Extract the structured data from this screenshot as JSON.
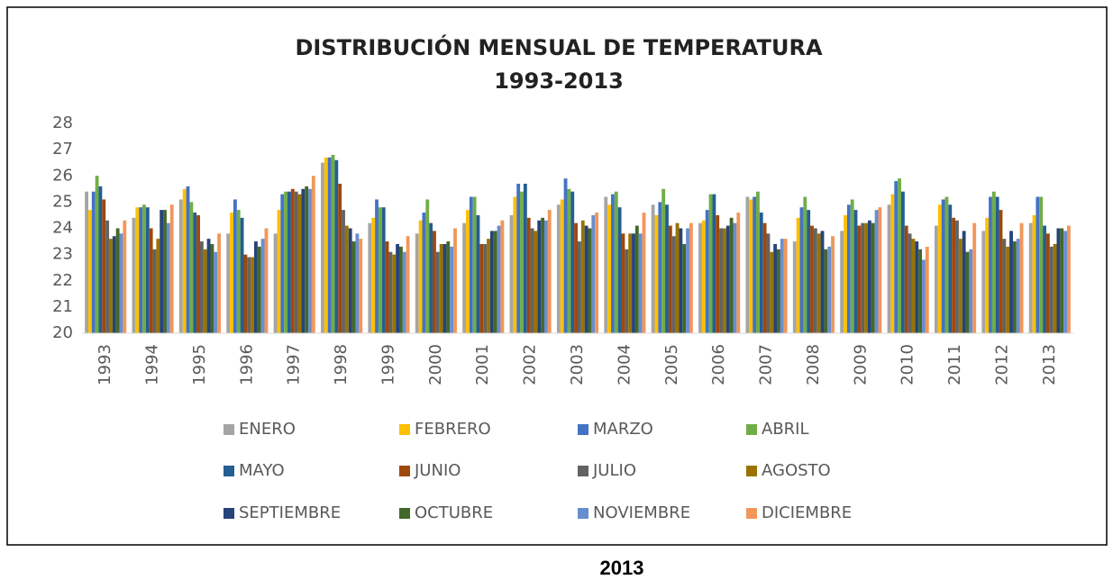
{
  "chart_data": {
    "type": "bar",
    "title": "DISTRIBUCIÓN MENSUAL DE TEMPERATURA",
    "subtitle": "1993-2013",
    "caption": "2013",
    "categories": [
      "1993",
      "1994",
      "1995",
      "1996",
      "1997",
      "1998",
      "1999",
      "2000",
      "2001",
      "2002",
      "2003",
      "2004",
      "2005",
      "2006",
      "2007",
      "2008",
      "2009",
      "2010",
      "2011",
      "2012",
      "2013"
    ],
    "ylim": [
      20,
      28
    ],
    "yticks": [
      20,
      21,
      22,
      23,
      24,
      25,
      26,
      27,
      28
    ],
    "grid": false,
    "series": [
      {
        "name": "ENERO",
        "color": "#a5a5a5",
        "values": [
          25.4,
          24.4,
          25.1,
          23.8,
          23.8,
          26.5,
          24.2,
          23.8,
          24.2,
          24.5,
          24.9,
          25.2,
          24.9,
          24.2,
          25.2,
          23.5,
          23.9,
          24.9,
          24.1,
          23.9,
          24.2
        ]
      },
      {
        "name": "FEBRERO",
        "color": "#ffc000",
        "values": [
          24.7,
          24.8,
          25.5,
          24.6,
          24.7,
          26.7,
          24.4,
          24.3,
          24.7,
          25.2,
          25.1,
          24.9,
          24.5,
          24.3,
          25.1,
          24.4,
          24.5,
          25.3,
          24.9,
          24.4,
          24.5
        ]
      },
      {
        "name": "MARZO",
        "color": "#4472c4",
        "values": [
          25.4,
          24.8,
          25.6,
          25.1,
          25.3,
          26.7,
          25.1,
          24.6,
          25.2,
          25.7,
          25.9,
          25.3,
          25.0,
          24.7,
          25.2,
          24.8,
          24.9,
          25.8,
          25.1,
          25.2,
          25.2
        ]
      },
      {
        "name": "ABRIL",
        "color": "#70ad47",
        "values": [
          26.0,
          24.9,
          25.0,
          24.7,
          25.4,
          26.8,
          24.8,
          25.1,
          25.2,
          25.4,
          25.5,
          25.4,
          25.5,
          25.3,
          25.4,
          25.2,
          25.1,
          25.9,
          25.2,
          25.4,
          25.2
        ]
      },
      {
        "name": "MAYO",
        "color": "#255e91",
        "values": [
          25.6,
          24.8,
          24.6,
          24.4,
          25.4,
          26.6,
          24.8,
          24.2,
          24.5,
          25.7,
          25.4,
          24.8,
          24.9,
          25.3,
          24.6,
          24.7,
          24.7,
          25.4,
          24.9,
          25.2,
          24.1
        ]
      },
      {
        "name": "JUNIO",
        "color": "#9e480e",
        "values": [
          25.1,
          24.0,
          24.5,
          23.0,
          25.5,
          25.7,
          23.5,
          23.9,
          23.4,
          24.4,
          24.2,
          23.8,
          24.1,
          24.5,
          24.2,
          24.1,
          24.1,
          24.1,
          24.4,
          24.7,
          23.8
        ]
      },
      {
        "name": "JULIO",
        "color": "#636363",
        "values": [
          24.3,
          23.2,
          23.5,
          22.9,
          25.4,
          24.7,
          23.1,
          23.1,
          23.4,
          24.0,
          23.5,
          23.2,
          23.7,
          24.0,
          23.8,
          24.0,
          24.2,
          23.8,
          24.3,
          23.6,
          23.3
        ]
      },
      {
        "name": "AGOSTO",
        "color": "#997300",
        "values": [
          23.6,
          23.6,
          23.2,
          22.9,
          25.3,
          24.1,
          23.0,
          23.4,
          23.6,
          23.9,
          24.3,
          23.8,
          24.2,
          24.0,
          23.1,
          23.8,
          24.2,
          23.6,
          23.6,
          23.3,
          23.4
        ]
      },
      {
        "name": "SEPTIEMBRE",
        "color": "#264478",
        "values": [
          23.7,
          24.7,
          23.6,
          23.5,
          25.5,
          24.0,
          23.4,
          23.4,
          23.9,
          24.3,
          24.1,
          23.8,
          24.0,
          24.1,
          23.4,
          23.9,
          24.3,
          23.5,
          23.9,
          23.9,
          24.0
        ]
      },
      {
        "name": "OCTUBRE",
        "color": "#43682b",
        "values": [
          24.0,
          24.7,
          23.4,
          23.3,
          25.6,
          23.5,
          23.3,
          23.5,
          23.9,
          24.4,
          24.0,
          24.1,
          23.4,
          24.4,
          23.2,
          23.2,
          24.2,
          23.2,
          23.1,
          23.5,
          24.0
        ]
      },
      {
        "name": "NOVIEMBRE",
        "color": "#698ed0",
        "values": [
          23.8,
          24.2,
          23.1,
          23.6,
          25.5,
          23.8,
          23.1,
          23.3,
          24.1,
          24.3,
          24.5,
          23.8,
          24.0,
          24.2,
          23.6,
          23.3,
          24.7,
          22.8,
          23.2,
          23.6,
          23.9
        ]
      },
      {
        "name": "DICIEMBRE",
        "color": "#f1975a",
        "values": [
          24.3,
          24.9,
          23.8,
          24.0,
          26.0,
          23.6,
          23.7,
          24.0,
          24.3,
          24.7,
          24.6,
          24.6,
          24.2,
          24.6,
          23.6,
          23.7,
          24.8,
          23.3,
          24.2,
          24.2,
          24.1
        ]
      }
    ]
  }
}
